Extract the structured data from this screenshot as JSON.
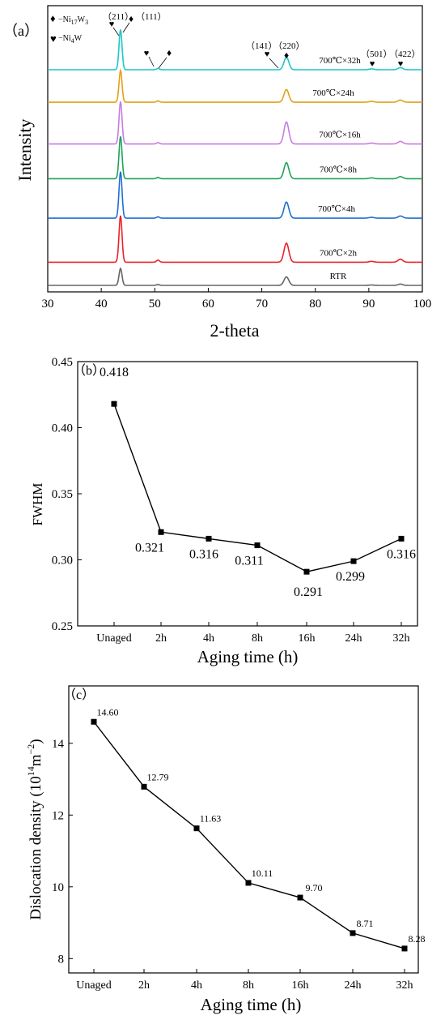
{
  "chart_data": [
    {
      "type": "line",
      "panel_label": "（a）",
      "xlabel": "2-theta",
      "ylabel": "Intensity",
      "xlim": [
        30,
        100
      ],
      "xticks": [
        30,
        40,
        50,
        60,
        70,
        80,
        90,
        100
      ],
      "grid": false,
      "legend_markers": [
        {
          "symbol": "♦",
          "text": "−Ni",
          "sub1": "17",
          "mid": "W",
          "sub2": "3"
        },
        {
          "symbol": "♥",
          "text": "−Ni",
          "sub1": "4",
          "mid": "W",
          "sub2": ""
        }
      ],
      "series": [
        {
          "name": "700℃×32h",
          "color": "#1fc6c6",
          "baseline": 0.93,
          "peaks": [
            [
              43.6,
              0.95
            ],
            [
              50.6,
              0.03
            ],
            [
              74.6,
              0.3
            ],
            [
              90.5,
              0.02
            ],
            [
              95.9,
              0.05
            ]
          ]
        },
        {
          "name": "700℃×24h",
          "color": "#e0a11a",
          "baseline": 0.79,
          "peaks": [
            [
              43.6,
              0.75
            ],
            [
              50.6,
              0.03
            ],
            [
              74.6,
              0.3
            ],
            [
              90.5,
              0.02
            ],
            [
              95.9,
              0.05
            ]
          ]
        },
        {
          "name": "700℃×16h",
          "color": "#c77ce0",
          "baseline": 0.61,
          "peaks": [
            [
              43.6,
              1.0
            ],
            [
              50.6,
              0.03
            ],
            [
              74.6,
              0.52
            ],
            [
              90.5,
              0.02
            ],
            [
              95.9,
              0.06
            ]
          ]
        },
        {
          "name": "700℃×8h",
          "color": "#1fa35a",
          "baseline": 0.46,
          "peaks": [
            [
              43.6,
              1.0
            ],
            [
              50.6,
              0.03
            ],
            [
              74.6,
              0.38
            ],
            [
              90.5,
              0.02
            ],
            [
              95.9,
              0.05
            ]
          ]
        },
        {
          "name": "700℃×4h",
          "color": "#1f6fd1",
          "baseline": 0.29,
          "peaks": [
            [
              43.6,
              1.1
            ],
            [
              50.6,
              0.03
            ],
            [
              74.6,
              0.38
            ],
            [
              90.5,
              0.02
            ],
            [
              95.9,
              0.05
            ]
          ]
        },
        {
          "name": "700℃×2h",
          "color": "#e8232b",
          "baseline": 0.1,
          "peaks": [
            [
              43.6,
              1.1
            ],
            [
              50.6,
              0.05
            ],
            [
              74.6,
              0.45
            ],
            [
              90.5,
              0.02
            ],
            [
              95.9,
              0.07
            ]
          ]
        },
        {
          "name": "RTR",
          "color": "#666666",
          "baseline": 0.0,
          "peaks": [
            [
              43.6,
              0.4
            ],
            [
              50.6,
              0.02
            ],
            [
              74.6,
              0.2
            ],
            [
              90.5,
              0.01
            ],
            [
              95.9,
              0.03
            ]
          ]
        }
      ],
      "annotations": [
        {
          "text": "（211）",
          "x": 43.6
        },
        {
          "text": "（111）",
          "x": 43.6
        },
        {
          "text": "（141）",
          "x": 70.6
        },
        {
          "text": "（220）",
          "x": 74.6
        },
        {
          "text": "（501）",
          "x": 90.5
        },
        {
          "text": "（422）",
          "x": 95.9
        }
      ]
    },
    {
      "type": "line",
      "panel_label": "（b）",
      "xlabel": "Aging time (h)",
      "ylabel": "FWHM",
      "ylim": [
        0.25,
        0.45
      ],
      "yticks": [
        "0.25",
        "0.30",
        "0.35",
        "0.40",
        "0.45"
      ],
      "categories": [
        "Unaged",
        "2h",
        "4h",
        "8h",
        "16h",
        "24h",
        "32h"
      ],
      "values": [
        0.418,
        0.321,
        0.316,
        0.311,
        0.291,
        0.299,
        0.316
      ],
      "data_labels": [
        "0.418",
        "0.321",
        "0.316",
        "0.311",
        "0.291",
        "0.299",
        "0.316"
      ],
      "grid": false
    },
    {
      "type": "line",
      "panel_label": "（c）",
      "xlabel": "Aging time (h)",
      "ylabel": "Dislocation density (10",
      "ylabel_sup": "14",
      "ylabel_unit": "m",
      "ylabel_sup2": "−2",
      "ylabel_end": ")",
      "ylim": [
        7.6,
        15.6
      ],
      "yticks": [
        "8",
        "10",
        "12",
        "14"
      ],
      "categories": [
        "Unaged",
        "2h",
        "4h",
        "8h",
        "16h",
        "24h",
        "32h"
      ],
      "values": [
        14.6,
        12.79,
        11.63,
        10.11,
        9.7,
        8.71,
        8.28
      ],
      "data_labels": [
        "14.60",
        "12.79",
        "11.63",
        "10.11",
        "9.70",
        "8.71",
        "8.28"
      ],
      "grid": false
    }
  ]
}
